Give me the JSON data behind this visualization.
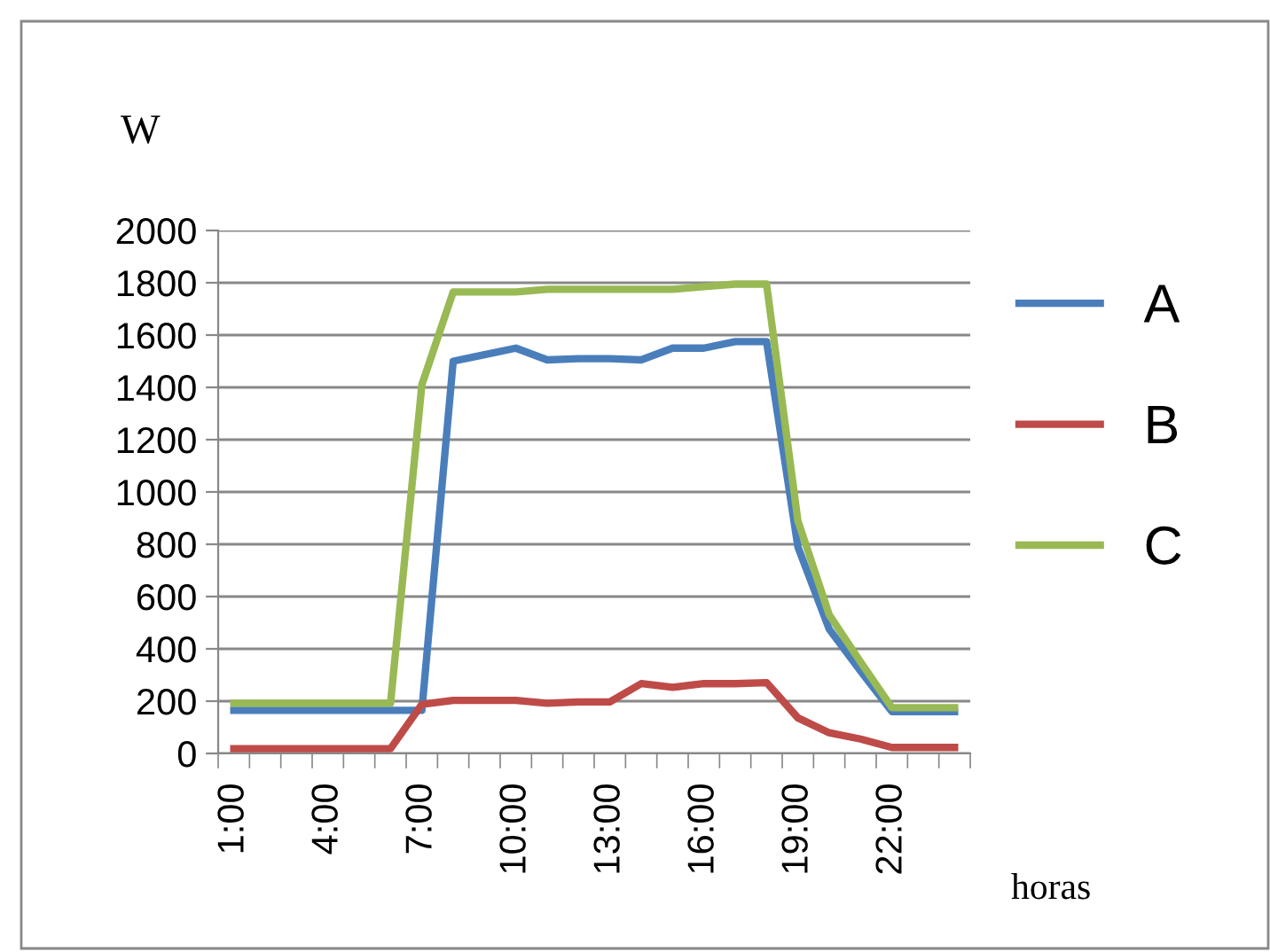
{
  "chart_data": {
    "type": "line",
    "ylabel": "W",
    "xlabel": "horas",
    "categories": [
      "1:00",
      null,
      null,
      "4:00",
      null,
      null,
      "7:00",
      null,
      null,
      "10:00",
      null,
      null,
      "13:00",
      null,
      null,
      "16:00",
      null,
      null,
      "19:00",
      null,
      null,
      "22:00",
      null,
      null
    ],
    "series": [
      {
        "name": "A",
        "color": "#4a7ebb",
        "values": [
          165,
          165,
          165,
          165,
          165,
          165,
          165,
          1500,
          1525,
          1550,
          1505,
          1510,
          1510,
          1505,
          1550,
          1550,
          1575,
          1575,
          790,
          475,
          315,
          160,
          160,
          160
        ]
      },
      {
        "name": "B",
        "color": "#be4b48",
        "values": [
          18,
          18,
          18,
          18,
          18,
          18,
          188,
          203,
          203,
          203,
          192,
          197,
          197,
          267,
          253,
          267,
          267,
          271,
          136,
          79,
          55,
          23,
          23,
          23
        ]
      },
      {
        "name": "C",
        "color": "#98b954",
        "values": [
          192,
          192,
          192,
          192,
          192,
          192,
          1410,
          1765,
          1765,
          1765,
          1775,
          1775,
          1775,
          1775,
          1775,
          1785,
          1795,
          1795,
          890,
          530,
          350,
          175,
          175,
          175
        ]
      }
    ],
    "ylim": [
      0,
      2000
    ],
    "yticks": [
      0,
      200,
      400,
      600,
      800,
      1000,
      1200,
      1400,
      1600,
      1800,
      2000
    ],
    "grid": "y",
    "legend": "right",
    "marker": "none",
    "line_style": "solid"
  }
}
